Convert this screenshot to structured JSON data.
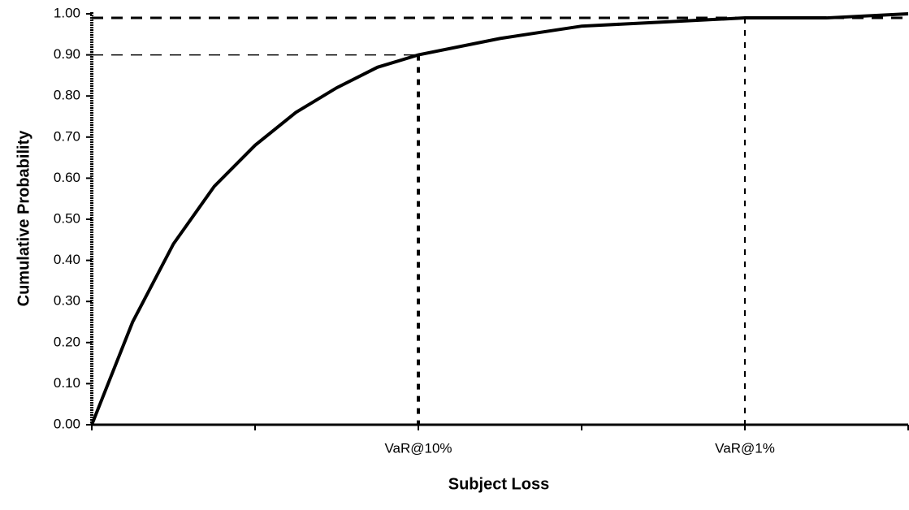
{
  "chart_data": {
    "type": "line",
    "xlabel": "Subject Loss",
    "ylabel": "Cumulative Probability",
    "x": [
      0,
      0.25,
      0.5,
      0.75,
      1,
      1.25,
      1.5,
      1.75,
      2,
      2.5,
      3,
      3.5,
      4,
      4.5,
      5
    ],
    "values": [
      0,
      0.25,
      0.44,
      0.58,
      0.68,
      0.76,
      0.82,
      0.87,
      0.9,
      0.94,
      0.97,
      0.98,
      0.99,
      0.99,
      1.0
    ],
    "color": "#000000",
    "xlim": [
      0,
      5
    ],
    "ylim": [
      0,
      1
    ],
    "xticks": [
      {
        "value": 2,
        "label": "VaR@10%"
      },
      {
        "value": 4,
        "label": "VaR@1%"
      }
    ],
    "minor_xticks": [
      0,
      1,
      3,
      5
    ],
    "yticks": [
      {
        "value": 0,
        "label": "0.00"
      },
      {
        "value": 0.1,
        "label": "0.10"
      },
      {
        "value": 0.2,
        "label": "0.20"
      },
      {
        "value": 0.3,
        "label": "0.30"
      },
      {
        "value": 0.4,
        "label": "0.40"
      },
      {
        "value": 0.5,
        "label": "0.50"
      },
      {
        "value": 0.6,
        "label": "0.60"
      },
      {
        "value": 0.7,
        "label": "0.70"
      },
      {
        "value": 0.8,
        "label": "0.80"
      },
      {
        "value": 0.9,
        "label": "0.90"
      },
      {
        "value": 1,
        "label": "1.00"
      }
    ],
    "var_points": [
      {
        "x": 2,
        "y": 0.9
      },
      {
        "x": 4,
        "y": 0.99
      }
    ]
  }
}
